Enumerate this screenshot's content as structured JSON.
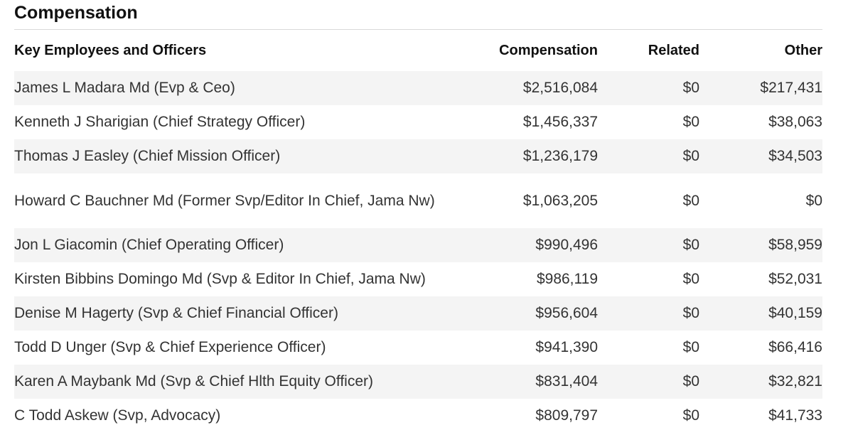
{
  "section": {
    "title": "Compensation"
  },
  "table": {
    "headers": {
      "name": "Key Employees and Officers",
      "compensation": "Compensation",
      "related": "Related",
      "other": "Other"
    },
    "rows": [
      {
        "name": "James L Madara Md (Evp & Ceo)",
        "compensation": "$2,516,084",
        "related": "$0",
        "other": "$217,431"
      },
      {
        "name": "Kenneth J Sharigian (Chief Strategy Officer)",
        "compensation": "$1,456,337",
        "related": "$0",
        "other": "$38,063"
      },
      {
        "name": "Thomas J Easley (Chief Mission Officer)",
        "compensation": "$1,236,179",
        "related": "$0",
        "other": "$34,503"
      },
      {
        "name": "Howard C Bauchner Md (Former Svp/Editor In Chief, Jama Nw)",
        "compensation": "$1,063,205",
        "related": "$0",
        "other": "$0"
      },
      {
        "name": "Jon L Giacomin (Chief Operating Officer)",
        "compensation": "$990,496",
        "related": "$0",
        "other": "$58,959"
      },
      {
        "name": "Kirsten Bibbins Domingo Md (Svp & Editor In Chief, Jama Nw)",
        "compensation": "$986,119",
        "related": "$0",
        "other": "$52,031"
      },
      {
        "name": "Denise M Hagerty (Svp & Chief Financial Officer)",
        "compensation": "$956,604",
        "related": "$0",
        "other": "$40,159"
      },
      {
        "name": "Todd D Unger (Svp & Chief Experience Officer)",
        "compensation": "$941,390",
        "related": "$0",
        "other": "$66,416"
      },
      {
        "name": "Karen A Maybank Md (Svp & Chief Hlth Equity Officer)",
        "compensation": "$831,404",
        "related": "$0",
        "other": "$32,821"
      },
      {
        "name": "C Todd Askew (Svp, Advocacy)",
        "compensation": "$809,797",
        "related": "$0",
        "other": "$41,733"
      }
    ]
  }
}
